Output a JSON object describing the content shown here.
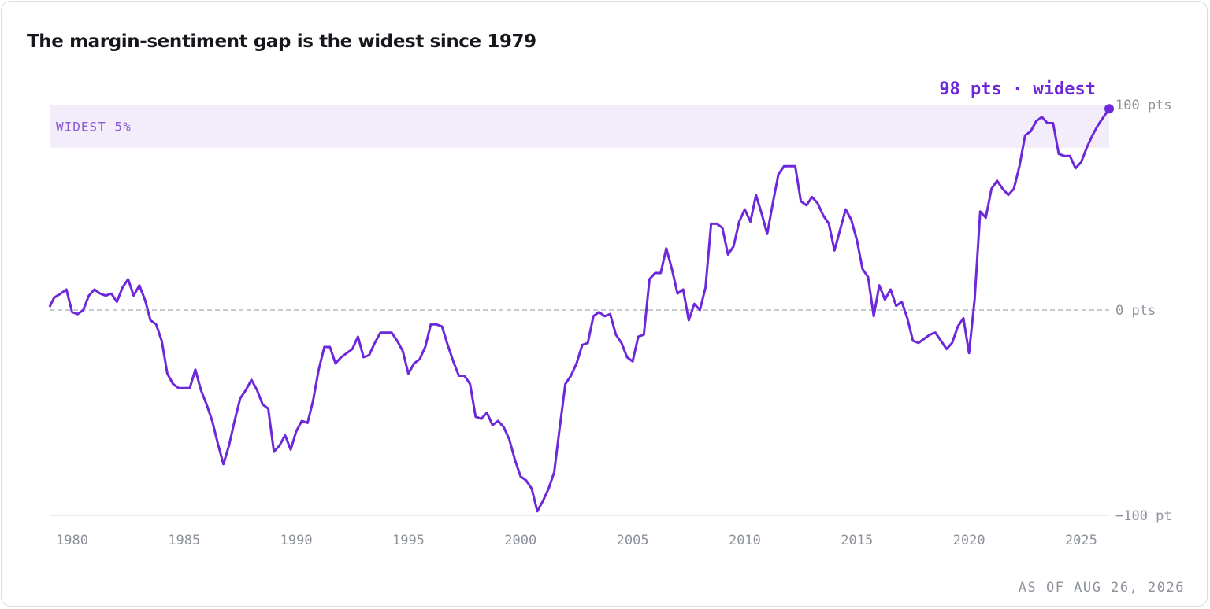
{
  "chart_data": {
    "type": "line",
    "title": "The margin-sentiment gap is the widest since 1979",
    "annotation": "98 pts · widest",
    "footnote": "AS OF AUG 26, 2026",
    "band": {
      "label": "WIDEST 5%",
      "range": [
        79,
        100
      ],
      "color": "#f3ecfb"
    },
    "color": "#6d28d9",
    "xlim": [
      1979,
      2026.25
    ],
    "xticks": [
      1980,
      1985,
      1990,
      1995,
      2000,
      2005,
      2010,
      2015,
      2020,
      2025
    ],
    "ylim": [
      -100,
      100
    ],
    "yticks": [
      {
        "value": 100,
        "label": "100 pts"
      },
      {
        "value": 0,
        "label": "0 pts"
      },
      {
        "value": -100,
        "label": "−100 pt"
      }
    ],
    "x": [
      1979,
      1979.2,
      1979.5,
      1979.75,
      1980,
      1980.25,
      1980.5,
      1980.75,
      1981,
      1981.25,
      1981.5,
      1981.75,
      1982,
      1982.25,
      1982.5,
      1982.75,
      1983,
      1983.25,
      1983.5,
      1983.75,
      1984,
      1984.25,
      1984.5,
      1984.75,
      1985,
      1985.25,
      1985.5,
      1985.75,
      1986,
      1986.25,
      1986.5,
      1986.75,
      1987,
      1987.25,
      1987.5,
      1987.75,
      1988,
      1988.25,
      1988.5,
      1988.75,
      1989,
      1989.25,
      1989.5,
      1989.75,
      1990,
      1990.25,
      1990.5,
      1990.75,
      1991,
      1991.25,
      1991.5,
      1991.75,
      1992,
      1992.25,
      1992.5,
      1992.75,
      1993,
      1993.25,
      1993.5,
      1993.75,
      1994,
      1994.25,
      1994.5,
      1994.75,
      1995,
      1995.25,
      1995.5,
      1995.75,
      1996,
      1996.25,
      1996.5,
      1996.75,
      1997,
      1997.25,
      1997.5,
      1997.75,
      1998,
      1998.25,
      1998.5,
      1998.75,
      1999,
      1999.25,
      1999.5,
      1999.75,
      2000,
      2000.25,
      2000.5,
      2000.75,
      2001,
      2001.25,
      2001.5,
      2001.75,
      2002,
      2002.25,
      2002.5,
      2002.75,
      2003,
      2003.25,
      2003.5,
      2003.75,
      2004,
      2004.25,
      2004.5,
      2004.75,
      2005,
      2005.25,
      2005.5,
      2005.75,
      2006,
      2006.25,
      2006.5,
      2006.75,
      2007,
      2007.25,
      2007.5,
      2007.75,
      2008,
      2008.25,
      2008.5,
      2008.75,
      2009,
      2009.25,
      2009.5,
      2009.75,
      2010,
      2010.25,
      2010.5,
      2010.75,
      2011,
      2011.25,
      2011.5,
      2011.75,
      2012,
      2012.25,
      2012.5,
      2012.75,
      2013,
      2013.25,
      2013.5,
      2013.75,
      2014,
      2014.25,
      2014.5,
      2014.75,
      2015,
      2015.25,
      2015.5,
      2015.75,
      2016,
      2016.25,
      2016.5,
      2016.75,
      2017,
      2017.25,
      2017.5,
      2017.75,
      2018,
      2018.25,
      2018.5,
      2018.75,
      2019,
      2019.25,
      2019.5,
      2019.75,
      2020,
      2020.25,
      2020.5,
      2020.75,
      2021,
      2021.25,
      2021.5,
      2021.75,
      2022,
      2022.25,
      2022.5,
      2022.75,
      2023,
      2023.25,
      2023.5,
      2023.75,
      2024,
      2024.25,
      2024.5,
      2024.75,
      2025,
      2025.25,
      2025.5,
      2025.75,
      2026,
      2026.25
    ],
    "values": [
      1.5,
      6,
      8,
      10,
      -1,
      -2,
      0,
      7,
      10,
      8,
      7,
      8,
      4,
      11,
      15,
      7,
      12,
      5,
      -5,
      -7,
      -15,
      -31,
      -36,
      -38,
      -38,
      -38,
      -29,
      -39,
      -46,
      -54,
      -65,
      -75,
      -66,
      -54,
      -43,
      -39,
      -34,
      -39,
      -46,
      -48,
      -69,
      -66,
      -61,
      -68,
      -59,
      -54,
      -55,
      -44,
      -29,
      -18,
      -18,
      -26,
      -23,
      -21,
      -19,
      -13,
      -23,
      -22,
      -16,
      -11,
      -11,
      -11,
      -15,
      -20,
      -31,
      -26,
      -24,
      -18,
      -7,
      -7,
      -8,
      -17,
      -25,
      -32,
      -32,
      -36,
      -52,
      -53,
      -50,
      -56,
      -54,
      -57,
      -63,
      -73,
      -81,
      -83,
      -87,
      -98,
      -93,
      -87,
      -79,
      -57,
      -36,
      -32,
      -26,
      -17,
      -16,
      -3,
      -1,
      -3,
      -2,
      -12,
      -16,
      -23,
      -25,
      -13,
      -12,
      15,
      18,
      18,
      30,
      20,
      8,
      10,
      -5,
      3,
      0,
      11,
      42,
      42,
      40,
      27,
      31,
      43,
      49,
      43,
      56,
      47,
      37,
      52,
      66,
      70,
      70,
      70,
      53,
      51,
      55,
      52,
      46,
      42,
      29,
      39,
      49,
      44,
      34,
      20,
      16,
      -3,
      12,
      5,
      10,
      2,
      4,
      -4,
      -15,
      -16,
      -14,
      -12,
      -11,
      -15,
      -19,
      -16,
      -8,
      -4,
      -21,
      5,
      48,
      45,
      59,
      63,
      59,
      56,
      59,
      70,
      85,
      87,
      92,
      94,
      91,
      91,
      76,
      75,
      75,
      69,
      72,
      79,
      85,
      90,
      94,
      98
    ]
  }
}
